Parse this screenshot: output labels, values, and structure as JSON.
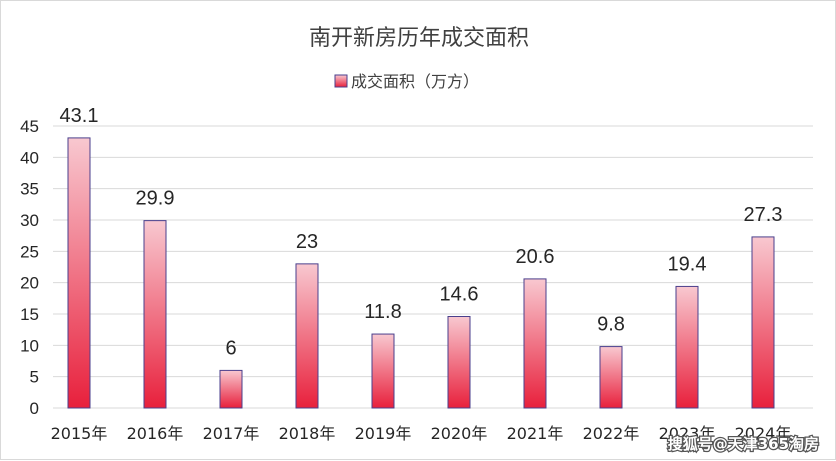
{
  "chart_data": {
    "type": "bar",
    "title": "南开新房历年成交面积",
    "legend": {
      "label": "成交面积（万方）",
      "position": "top"
    },
    "categories": [
      "2015年",
      "2016年",
      "2017年",
      "2018年",
      "2019年",
      "2020年",
      "2021年",
      "2022年",
      "2023年",
      "2024年"
    ],
    "series": [
      {
        "name": "成交面积（万方）",
        "values": [
          43.1,
          29.9,
          6,
          23,
          11.8,
          14.6,
          20.6,
          9.8,
          19.4,
          27.3
        ]
      }
    ],
    "yticks": [
      0,
      5,
      10,
      15,
      20,
      25,
      30,
      35,
      40,
      45
    ],
    "ylim": [
      0,
      45
    ],
    "grid": true,
    "colors": {
      "bar_top": "#f8c8d0",
      "bar_bottom": "#e8203c",
      "bar_edge": "#4a3f8c",
      "grid": "#d9d9d9"
    }
  },
  "watermark": "搜狐号@天津365淘房"
}
